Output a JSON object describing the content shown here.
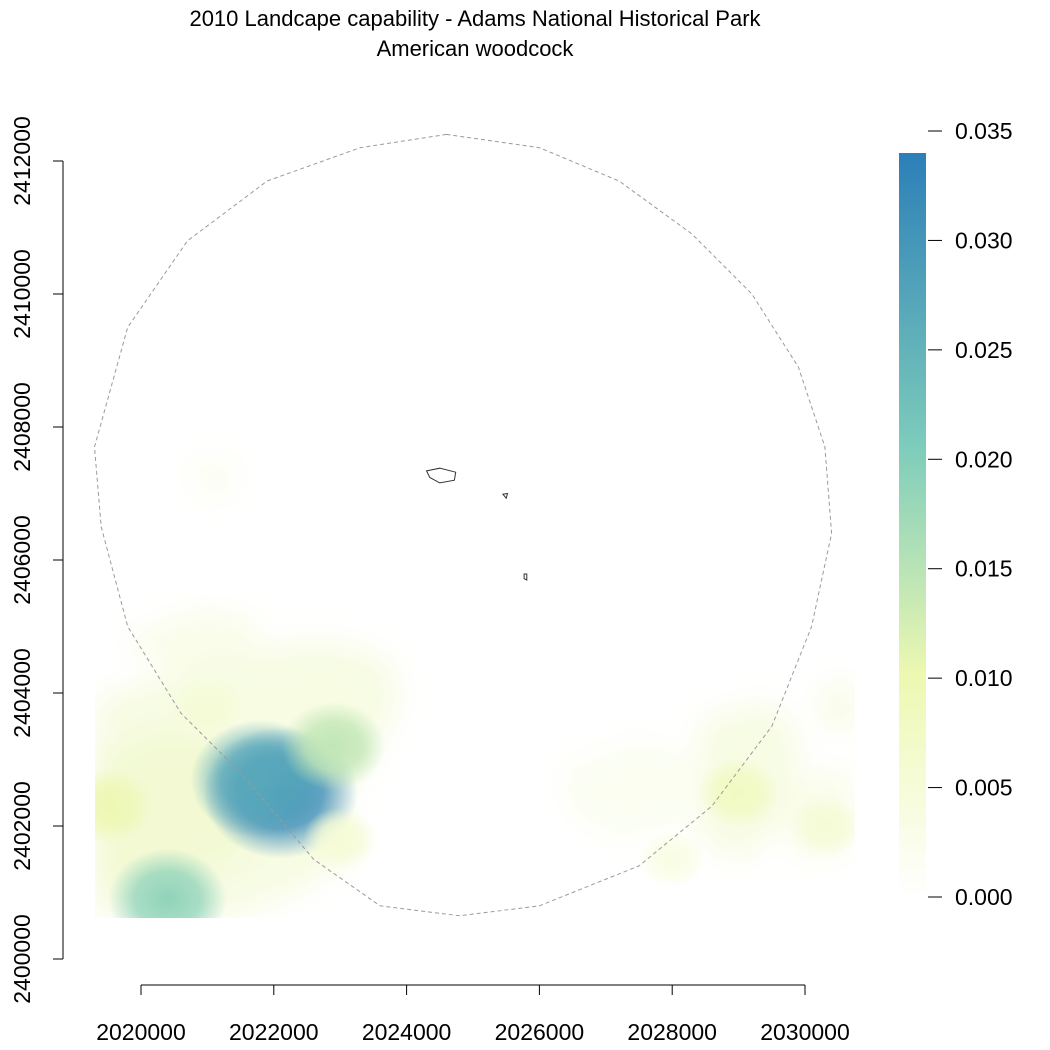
{
  "title": {
    "line1": "2010 Landcape capability - Adams National Historical Park",
    "line2": "American woodcock"
  },
  "chart_data": {
    "type": "heatmap",
    "x_axis": {
      "ticks": [
        2020000,
        2022000,
        2024000,
        2026000,
        2028000,
        2030000
      ],
      "tick_labels": [
        "2020000",
        "2022000",
        "2024000",
        "2026000",
        "2028000",
        "2030000"
      ],
      "range": [
        2020000,
        2030000
      ]
    },
    "y_axis": {
      "ticks": [
        2400000,
        2402000,
        2404000,
        2406000,
        2408000,
        2410000,
        2412000
      ],
      "tick_labels": [
        "2400000",
        "2402000",
        "2404000",
        "2406000",
        "2408000",
        "2410000",
        "2412000"
      ],
      "range": [
        2400000,
        2412000
      ]
    },
    "color_scale": {
      "min": 0.0,
      "max": 0.034,
      "colors": [
        "#ffffff",
        "#edf8b1",
        "#7fcdbb",
        "#2c7fb8"
      ],
      "ticks": [
        0.0,
        0.005,
        0.01,
        0.015,
        0.02,
        0.025,
        0.03,
        0.035
      ],
      "tick_labels": [
        "0.000",
        "0.005",
        "0.010",
        "0.015",
        "0.020",
        "0.025",
        "0.030",
        "0.035"
      ]
    },
    "hotspots": [
      {
        "x": 2022100,
        "y": 2402500,
        "value": 0.033
      },
      {
        "x": 2021800,
        "y": 2402700,
        "value": 0.028
      },
      {
        "x": 2022900,
        "y": 2403200,
        "value": 0.016
      },
      {
        "x": 2020400,
        "y": 2400900,
        "value": 0.021
      },
      {
        "x": 2019500,
        "y": 2402300,
        "value": 0.011
      },
      {
        "x": 2021000,
        "y": 2403800,
        "value": 0.006
      },
      {
        "x": 2023000,
        "y": 2401800,
        "value": 0.006
      },
      {
        "x": 2029000,
        "y": 2402500,
        "value": 0.009
      },
      {
        "x": 2030300,
        "y": 2402000,
        "value": 0.006
      },
      {
        "x": 2028000,
        "y": 2401500,
        "value": 0.004
      }
    ],
    "study_area_boundary": [
      [
        2024600,
        2412400
      ],
      [
        2026000,
        2412200
      ],
      [
        2027200,
        2411700
      ],
      [
        2028300,
        2410900
      ],
      [
        2029200,
        2410000
      ],
      [
        2029900,
        2408900
      ],
      [
        2030300,
        2407700
      ],
      [
        2030400,
        2406400
      ],
      [
        2030100,
        2405000
      ],
      [
        2029500,
        2403500
      ],
      [
        2028600,
        2402300
      ],
      [
        2027500,
        2401400
      ],
      [
        2026000,
        2400800
      ],
      [
        2024800,
        2400650
      ],
      [
        2023600,
        2400800
      ],
      [
        2022600,
        2401500
      ],
      [
        2021500,
        2402800
      ],
      [
        2020600,
        2403700
      ],
      [
        2019800,
        2405000
      ],
      [
        2019400,
        2406500
      ],
      [
        2019300,
        2407700
      ],
      [
        2019800,
        2409500
      ],
      [
        2020700,
        2410800
      ],
      [
        2021900,
        2411700
      ],
      [
        2023300,
        2412200
      ],
      [
        2024600,
        2412400
      ]
    ],
    "park_units": [
      [
        [
          2024300,
          2407340
        ],
        [
          2024500,
          2407380
        ],
        [
          2024740,
          2407320
        ],
        [
          2024720,
          2407200
        ],
        [
          2024500,
          2407160
        ],
        [
          2024350,
          2407240
        ],
        [
          2024300,
          2407340
        ]
      ],
      [
        [
          2025450,
          2406990
        ],
        [
          2025520,
          2407000
        ],
        [
          2025500,
          2406930
        ],
        [
          2025450,
          2406990
        ]
      ],
      [
        [
          2025770,
          2405790
        ],
        [
          2025810,
          2405790
        ],
        [
          2025810,
          2405700
        ],
        [
          2025770,
          2405720
        ],
        [
          2025770,
          2405790
        ]
      ]
    ]
  }
}
